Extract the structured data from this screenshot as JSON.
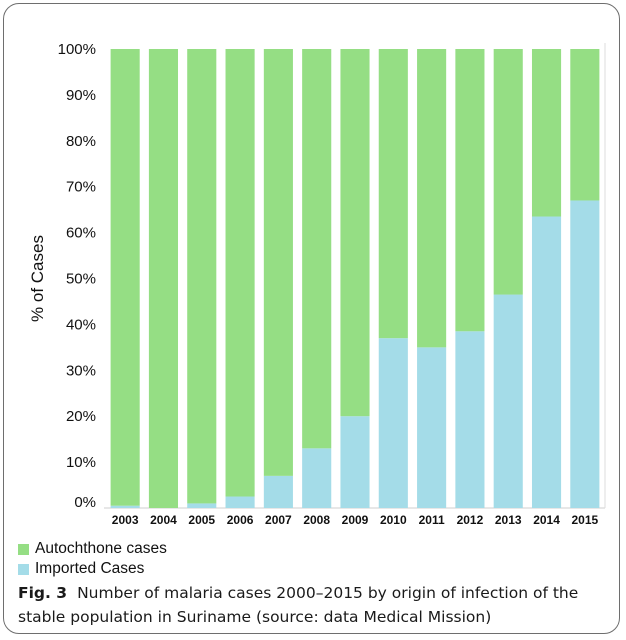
{
  "chart_data": {
    "type": "bar",
    "stacked": true,
    "categories": [
      "2003",
      "2004",
      "2005",
      "2006",
      "2007",
      "2008",
      "2009",
      "2010",
      "2011",
      "2012",
      "2013",
      "2014",
      "2015"
    ],
    "series": [
      {
        "name": "Imported Cases",
        "color": "#a4dce8",
        "values": [
          0.5,
          0,
          1,
          2.5,
          7,
          13,
          20,
          37,
          35,
          38.5,
          46.5,
          63.5,
          67
        ]
      },
      {
        "name": "Autochthone cases",
        "color": "#95de84",
        "values": [
          99.5,
          100,
          99,
          97.5,
          93,
          87,
          80,
          63,
          65,
          61.5,
          53.5,
          36.5,
          33
        ]
      }
    ],
    "yticks": [
      "0%",
      "10%",
      "20%",
      "30%",
      "40%",
      "50%",
      "60%",
      "70%",
      "80%",
      "90%",
      "100%"
    ],
    "ylim": [
      0,
      100
    ],
    "ylabel": "% of Cases",
    "xlabel": "",
    "legend_position": "bottom-left",
    "grid": false
  },
  "legend": {
    "items": [
      {
        "label": "Autochthone cases",
        "color": "#95de84"
      },
      {
        "label": "Imported Cases",
        "color": "#a4dce8"
      }
    ]
  },
  "caption": {
    "label": "Fig. 3",
    "text": "Number of malaria cases 2000–2015 by origin of infection of the stable population in Suriname (source: data Medical Mission)"
  }
}
